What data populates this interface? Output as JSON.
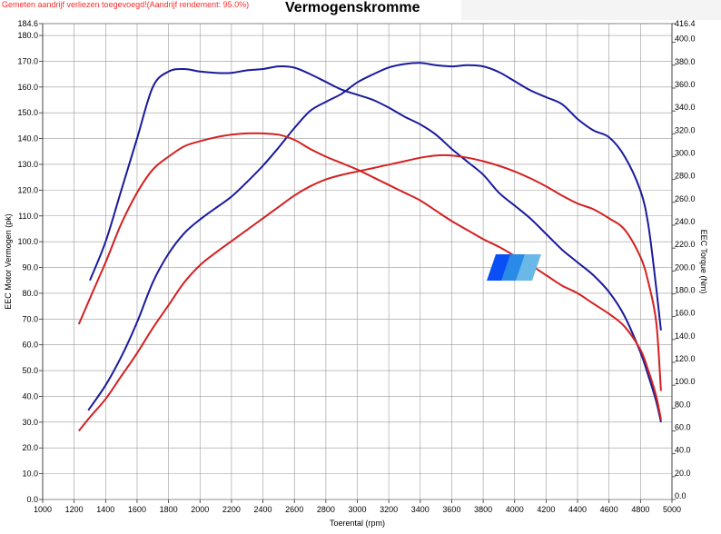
{
  "header": {
    "notice": "Gemeten aandrijf verliezen toegevoegd!(Aandrijf rendement: 95.0%)",
    "title": "Vermogenskromme"
  },
  "chart_data": {
    "type": "line",
    "title": "Vermogenskromme",
    "xlabel": "Toerental (rpm)",
    "ylabel": "EEC Motor Vermogen (pk)",
    "y2label": "EEC Torque (Nm)",
    "xlim": [
      1000,
      5000
    ],
    "ylim": [
      0,
      184.6
    ],
    "y2lim": [
      0,
      416.4
    ],
    "x_ticks": [
      1000,
      1200,
      1400,
      1600,
      1800,
      2000,
      2200,
      2400,
      2600,
      2800,
      3000,
      3200,
      3400,
      3600,
      3800,
      4000,
      4200,
      4400,
      4600,
      4800,
      5000
    ],
    "y_ticks": [
      "0.0",
      "10.0",
      "20.0",
      "30.0",
      "40.0",
      "50.0",
      "60.0",
      "70.0",
      "80.0",
      "90.0",
      "100.0",
      "110.0",
      "120.0",
      "130.0",
      "140.0",
      "150.0",
      "160.0",
      "170.0",
      "180.0"
    ],
    "y_top_label": "184.6",
    "y2_ticks": [
      "0.0",
      "20.0",
      "40.0",
      "60.0",
      "80.0",
      "100.0",
      "120.0",
      "140.0",
      "160.0",
      "180.0",
      "200.0",
      "220.0",
      "240.0",
      "260.0",
      "280.0",
      "300.0",
      "320.0",
      "340.0",
      "360.0",
      "380.0",
      "400.0"
    ],
    "y2_top_label": "416.4",
    "grid": true,
    "series": [
      {
        "color": "#1a1a9c",
        "axis": "right",
        "x": [
          1290,
          1400,
          1500,
          1600,
          1700,
          1800,
          1900,
          2000,
          2100,
          2200,
          2300,
          2400,
          2500,
          2600,
          2700,
          2800,
          2900,
          3000,
          3100,
          3200,
          3300,
          3400,
          3500,
          3600,
          3700,
          3800,
          3900,
          4000,
          4100,
          4200,
          4300,
          4400,
          4500,
          4600,
          4700,
          4800,
          4850,
          4900,
          4930
        ],
        "values": [
          78,
          100,
          125,
          155,
          190,
          215,
          233,
          245,
          255,
          265,
          278,
          292,
          308,
          325,
          340,
          348,
          355,
          365,
          372,
          378,
          381,
          382,
          380,
          379,
          380,
          379,
          374,
          366,
          358,
          352,
          346,
          333,
          323,
          317,
          300,
          270,
          240,
          185,
          148
        ]
      },
      {
        "color": "#1a1a9c",
        "axis": "left",
        "x": [
          1300,
          1400,
          1500,
          1600,
          1700,
          1800,
          1900,
          2000,
          2100,
          2200,
          2300,
          2400,
          2500,
          2600,
          2700,
          2800,
          2900,
          3000,
          3100,
          3200,
          3300,
          3400,
          3500,
          3600,
          3700,
          3800,
          3900,
          4000,
          4100,
          4200,
          4300,
          4400,
          4500,
          4600,
          4700,
          4800,
          4850,
          4900,
          4930
        ],
        "values": [
          85,
          100,
          120,
          140,
          160,
          166,
          167,
          166,
          165.5,
          165.5,
          166.5,
          167,
          168,
          167.5,
          165,
          162,
          159,
          157,
          155,
          152,
          148.5,
          145.5,
          141.5,
          136,
          131,
          126,
          119,
          114,
          109,
          103,
          97,
          92,
          87,
          80.5,
          71,
          57,
          48,
          38,
          30
        ]
      },
      {
        "color": "#d42020",
        "axis": "left",
        "x": [
          1230,
          1300,
          1400,
          1500,
          1600,
          1700,
          1800,
          1900,
          2000,
          2100,
          2200,
          2300,
          2400,
          2500,
          2600,
          2700,
          2800,
          2900,
          3000,
          3100,
          3200,
          3300,
          3400,
          3500,
          3600,
          3700,
          3800,
          3900,
          4000,
          4100,
          4200,
          4300,
          4400,
          4500,
          4600,
          4700,
          4800,
          4850,
          4900,
          4930
        ],
        "values": [
          68,
          78,
          92,
          107,
          119,
          128,
          133,
          137,
          139,
          140.5,
          141.5,
          142,
          142,
          141.5,
          139.5,
          136,
          133,
          130.5,
          128,
          125,
          122,
          119,
          116,
          112,
          108,
          104.5,
          101,
          98,
          94.5,
          91,
          87,
          83,
          80,
          76,
          72,
          67,
          58,
          50,
          40,
          31
        ]
      },
      {
        "color": "#d42020",
        "axis": "right",
        "x": [
          1230,
          1300,
          1400,
          1500,
          1600,
          1700,
          1800,
          1900,
          2000,
          2100,
          2200,
          2300,
          2400,
          2500,
          2600,
          2700,
          2800,
          2900,
          3000,
          3100,
          3200,
          3300,
          3400,
          3500,
          3600,
          3700,
          3800,
          3900,
          4000,
          4100,
          4200,
          4300,
          4400,
          4500,
          4600,
          4700,
          4800,
          4850,
          4900,
          4930
        ],
        "values": [
          60,
          72,
          88,
          108,
          128,
          150,
          170,
          190,
          205,
          216,
          226,
          236,
          246,
          256,
          266,
          274,
          280,
          284,
          287,
          290,
          293,
          296,
          299,
          301,
          301,
          299,
          296,
          292,
          287,
          281,
          274,
          266,
          259,
          254,
          246,
          236,
          212,
          190,
          155,
          95
        ]
      }
    ]
  },
  "logo": {
    "colors": [
      "#0a4ff5",
      "#2a8ae8",
      "#6ab8e8"
    ]
  }
}
